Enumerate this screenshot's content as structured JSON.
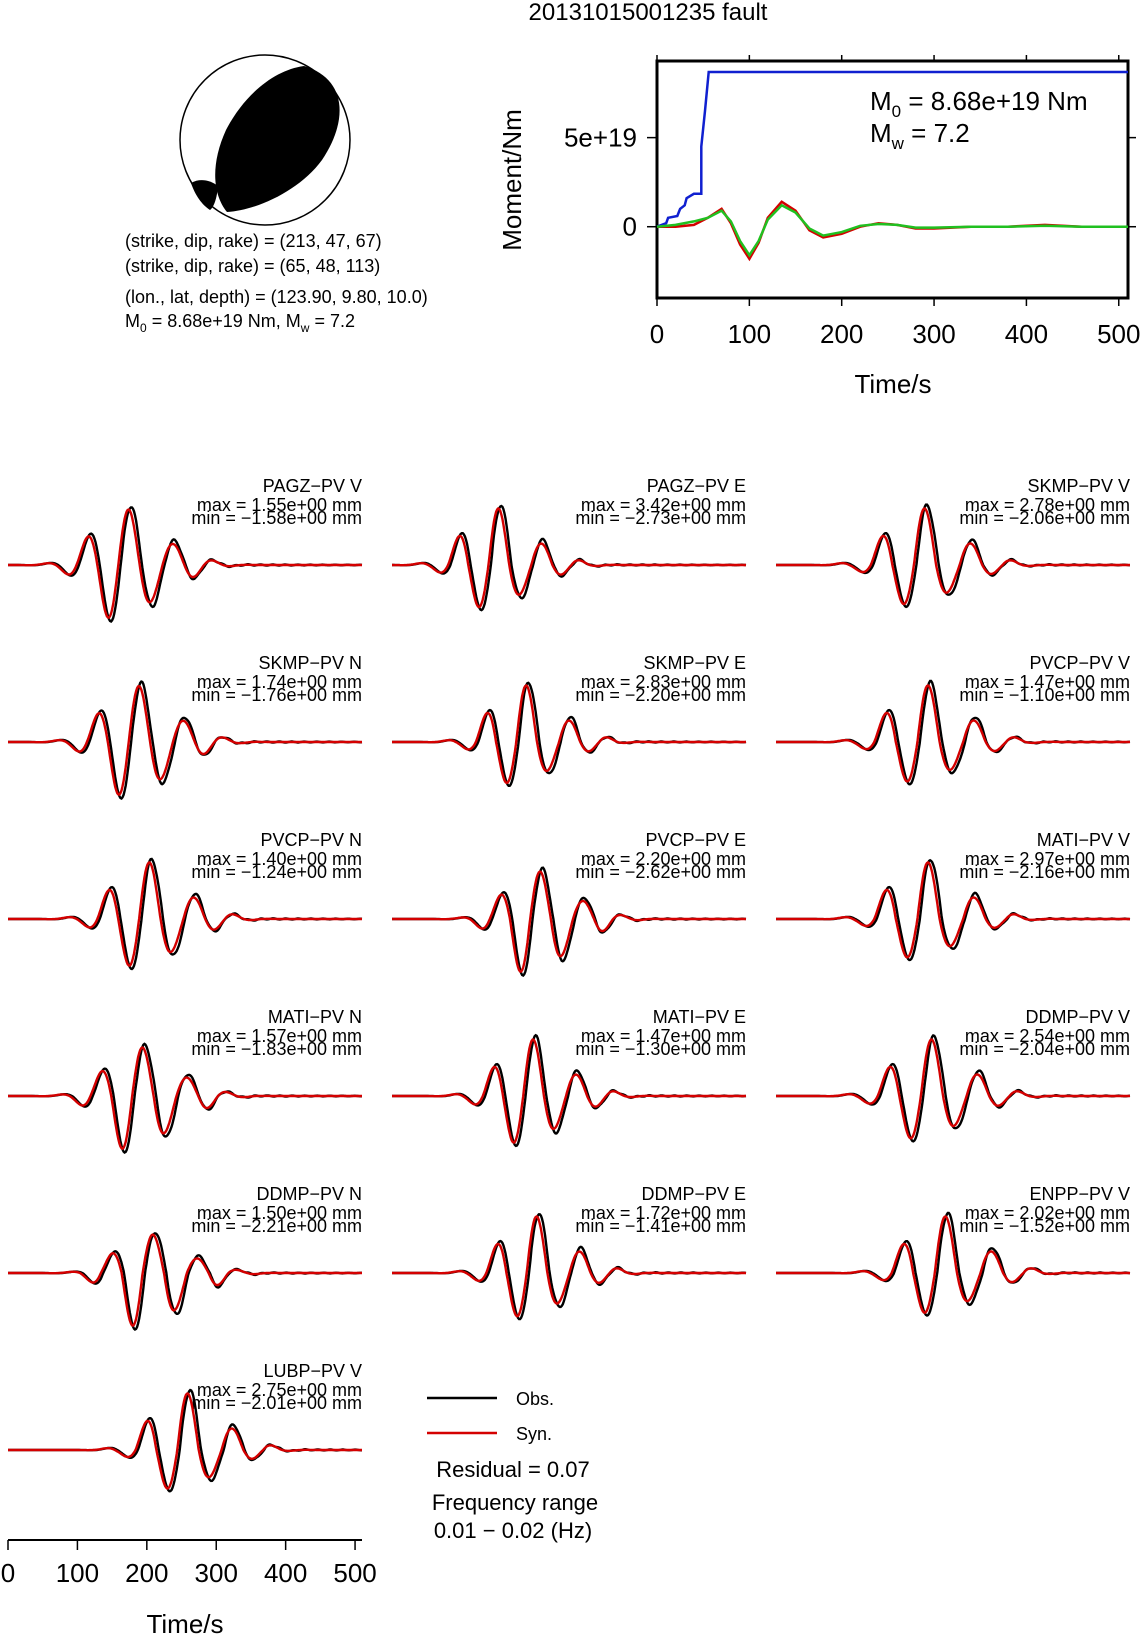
{
  "title": "20131015001235 fault",
  "colors": {
    "obs": "#000000",
    "syn": "#d40000",
    "moment": "#1020d0",
    "green": "#20c020",
    "beach_fill": "#000000"
  },
  "mechanism": {
    "line1": "(strike, dip, rake) = (213, 47, 67)",
    "line2": "(strike, dip, rake) = (65, 48, 113)",
    "line3": "(lon., lat, depth) = (123.90, 9.80, 10.0)",
    "m0_text": "M",
    "m0_sub": "0",
    "m0_rest": " = 8.68e+19 Nm, M",
    "mw_sub": "w",
    "mw_rest": " = 7.2"
  },
  "moment_panel": {
    "ylabel": "Moment/Nm",
    "xlabel": "Time/s",
    "m0_label": "M",
    "m0_sub": "0",
    "m0_value": " = 8.68e+19 Nm",
    "mw_label": "M",
    "mw_sub": "w",
    "mw_value": " = 7.2"
  },
  "chart_data": [
    {
      "type": "line",
      "title": "20131015001235 fault",
      "xlabel": "Time/s",
      "ylabel": "Moment/Nm",
      "xlim": [
        0,
        510
      ],
      "ylim": [
        -4e+19,
        9.3e+19
      ],
      "x_ticks": [
        "0",
        "100",
        "200",
        "300",
        "400",
        "500"
      ],
      "y_ticks": [
        "0",
        "5e+19"
      ],
      "series": [
        {
          "color": "#1020d0",
          "x": [
            0,
            10,
            12,
            22,
            25,
            30,
            32,
            40,
            48,
            48,
            52,
            56,
            58,
            510
          ],
          "y": [
            0,
            2e+18,
            5e+18,
            6e+18,
            1e+19,
            1.2e+19,
            1.6e+19,
            1.85e+19,
            1.85e+19,
            4.5e+19,
            6.5e+19,
            8.68e+19,
            8.68e+19,
            8.68e+19
          ]
        },
        {
          "color": "#d40000",
          "x": [
            0,
            20,
            40,
            55,
            70,
            80,
            90,
            100,
            110,
            120,
            135,
            150,
            165,
            180,
            200,
            220,
            240,
            260,
            280,
            300,
            340,
            380,
            420,
            460,
            510
          ],
          "y": [
            0,
            0,
            1e+18,
            5e+18,
            1e+19,
            2e+18,
            -1e+19,
            -1.8e+19,
            -9e+18,
            5e+18,
            1.4e+19,
            9e+18,
            -2e+18,
            -6e+18,
            -4e+18,
            0,
            2e+18,
            1e+18,
            -1e+18,
            -1e+18,
            0,
            0,
            1e+18,
            0,
            0
          ]
        },
        {
          "color": "#20c020",
          "x": [
            0,
            20,
            40,
            55,
            70,
            80,
            90,
            100,
            110,
            120,
            135,
            150,
            165,
            180,
            200,
            220,
            240,
            260,
            280,
            300,
            340,
            380,
            420,
            460,
            510
          ],
          "y": [
            0,
            1e+18,
            3e+18,
            5e+18,
            9e+18,
            3e+18,
            -8e+18,
            -1.6e+19,
            -8e+18,
            4e+18,
            1.2e+19,
            8e+18,
            -1e+18,
            -5e+18,
            -3e+18,
            5e+17,
            1.5e+18,
            1e+18,
            -5e+17,
            -5e+17,
            0,
            0,
            5e+17,
            0,
            0
          ]
        }
      ]
    },
    {
      "type": "line",
      "xlabel": "Time/s",
      "xlim": [
        0,
        510
      ],
      "x_ticks": [
        "0",
        "100",
        "200",
        "300",
        "400",
        "500"
      ],
      "legend": [
        "Obs.",
        "Syn."
      ],
      "residual": "Residual = 0.07",
      "freq_label": "Frequency range",
      "freq_value": "0.01 − 0.02 (Hz)",
      "stations": [
        {
          "name": "PAGZ−PV V",
          "max": "max = 1.55e+00 mm",
          "min": "min = −1.58e+00 mm",
          "t0": 165,
          "a": 1.55,
          "b": 1.58,
          "p": 60
        },
        {
          "name": "PAGZ−PV E",
          "max": "max = 3.42e+00 mm",
          "min": "min = −2.73e+00 mm",
          "t0": 145,
          "a": 3.42,
          "b": 2.73,
          "p": 58
        },
        {
          "name": "SKMP−PV V",
          "max": "max = 2.78e+00 mm",
          "min": "min = −2.06e+00 mm",
          "t0": 205,
          "a": 2.78,
          "b": 2.06,
          "p": 62
        },
        {
          "name": "SKMP−PV N",
          "max": "max = 1.74e+00 mm",
          "min": "min = −1.76e+00 mm",
          "t0": 180,
          "a": 1.74,
          "b": 1.76,
          "p": 60
        },
        {
          "name": "SKMP−PV E",
          "max": "max = 2.83e+00 mm",
          "min": "min = −2.20e+00 mm",
          "t0": 185,
          "a": 2.83,
          "b": 2.2,
          "p": 58
        },
        {
          "name": "PVCP−PV V",
          "max": "max = 1.47e+00 mm",
          "min": "min = −1.10e+00 mm",
          "t0": 210,
          "a": 1.47,
          "b": 1.1,
          "p": 62
        },
        {
          "name": "PVCP−PV N",
          "max": "max = 1.40e+00 mm",
          "min": "min = −1.24e+00 mm",
          "t0": 195,
          "a": 1.4,
          "b": 1.24,
          "p": 60
        },
        {
          "name": "PVCP−PV E",
          "max": "max = 2.20e+00 mm",
          "min": "min = −2.62e+00 mm",
          "t0": 205,
          "a": 2.2,
          "b": 2.62,
          "p": 58
        },
        {
          "name": "MATI−PV V",
          "max": "max = 2.97e+00 mm",
          "min": "min = −2.16e+00 mm",
          "t0": 210,
          "a": 2.97,
          "b": 2.16,
          "p": 62
        },
        {
          "name": "MATI−PV N",
          "max": "max = 1.57e+00 mm",
          "min": "min = −1.83e+00 mm",
          "t0": 185,
          "a": 1.57,
          "b": 1.83,
          "p": 60
        },
        {
          "name": "MATI−PV E",
          "max": "max = 1.47e+00 mm",
          "min": "min = −1.30e+00 mm",
          "t0": 195,
          "a": 1.47,
          "b": 1.3,
          "p": 58
        },
        {
          "name": "DDMP−PV V",
          "max": "max = 2.54e+00 mm",
          "min": "min = −2.04e+00 mm",
          "t0": 215,
          "a": 2.54,
          "b": 2.04,
          "p": 62
        },
        {
          "name": "DDMP−PV N",
          "max": "max = 1.50e+00 mm",
          "min": "min = −2.21e+00 mm",
          "t0": 200,
          "a": 1.5,
          "b": 2.21,
          "p": 60
        },
        {
          "name": "DDMP−PV E",
          "max": "max = 1.72e+00 mm",
          "min": "min = −1.41e+00 mm",
          "t0": 200,
          "a": 1.72,
          "b": 1.41,
          "p": 58
        },
        {
          "name": "ENPP−PV V",
          "max": "max = 2.02e+00 mm",
          "min": "min = −1.52e+00 mm",
          "t0": 235,
          "a": 2.02,
          "b": 1.52,
          "p": 62
        },
        {
          "name": "LUBP−PV V",
          "max": "max = 2.75e+00 mm",
          "min": "min = −2.01e+00 mm",
          "t0": 250,
          "a": 2.75,
          "b": 2.01,
          "p": 60
        }
      ]
    }
  ]
}
